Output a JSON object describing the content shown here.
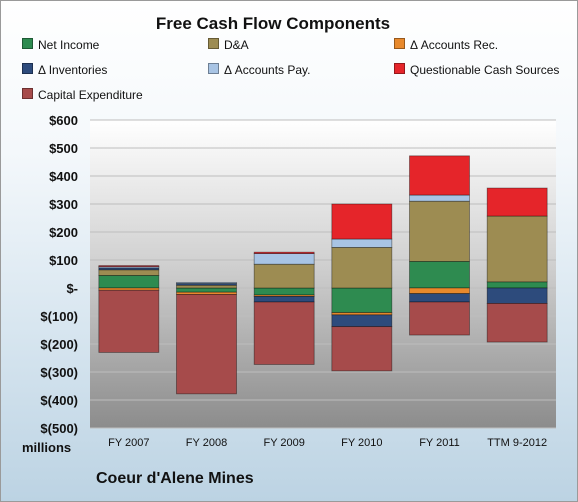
{
  "chart_data": {
    "type": "bar",
    "stacked": true,
    "title": "Free Cash Flow Components",
    "ylabel": "millions",
    "ylim": [
      -500,
      600
    ],
    "yticks": [
      600,
      500,
      400,
      300,
      200,
      100,
      0,
      -100,
      -200,
      -300,
      -400,
      -500
    ],
    "ytick_labels": [
      "$600",
      "$500",
      "$400",
      "$300",
      "$200",
      "$100",
      "$-",
      "$(100)",
      "$(200)",
      "$(300)",
      "$(400)",
      "$(500)"
    ],
    "categories": [
      "FY 2007",
      "FY 2008",
      "FY 2009",
      "FY 2010",
      "FY 2011",
      "TTM 9-2012"
    ],
    "grid": true,
    "legend_position": "top",
    "series": [
      {
        "name": "Net Income",
        "color": "#2e8b50",
        "values": [
          45,
          -15,
          -25,
          -88,
          95,
          22
        ]
      },
      {
        "name": "D&A",
        "color": "#9d8c52",
        "values": [
          20,
          10,
          85,
          145,
          215,
          235
        ]
      },
      {
        "name": "Δ Accounts Rec.",
        "color": "#e8892c",
        "values": [
          -8,
          -8,
          -5,
          -8,
          -20,
          0
        ]
      },
      {
        "name": "Δ Inventories",
        "color": "#2d4b7c",
        "values": [
          7,
          6,
          -20,
          -42,
          -30,
          -55
        ]
      },
      {
        "name": "Δ Accounts Pay.",
        "color": "#a8c4e4",
        "values": [
          5,
          4,
          38,
          30,
          22,
          0
        ]
      },
      {
        "name": "Questionable Cash Sources",
        "color": "#e5252a",
        "values": [
          3,
          0,
          5,
          125,
          140,
          100
        ]
      },
      {
        "name": "Capital Expenditure",
        "color": "#a64b4b",
        "values": [
          -222,
          -355,
          -223,
          -158,
          -118,
          -138
        ]
      }
    ]
  },
  "footer": {
    "units": "millions",
    "company": "Coeur d'Alene Mines"
  }
}
